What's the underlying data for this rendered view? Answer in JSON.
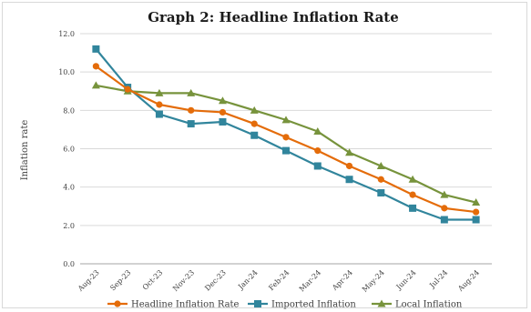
{
  "colors": {
    "headline": "#E46C0A",
    "imported": "#31859C",
    "local": "#77933C",
    "grid": "#d9d9d9",
    "axis": "#a6a6a6"
  },
  "chart_data": {
    "type": "line",
    "title": "Graph 2: Headline Inflation Rate",
    "xlabel": "",
    "ylabel": "Inflation rate",
    "ylim": [
      0,
      12
    ],
    "yticks": [
      "0.0",
      "2.0",
      "4.0",
      "6.0",
      "8.0",
      "10.0",
      "12.0"
    ],
    "grid": true,
    "legend_position": "bottom",
    "categories": [
      "Aug-23",
      "Sep-23",
      "Oct-23",
      "Nov-23",
      "Dec-23",
      "Jan-24",
      "Feb-24",
      "Mar-24",
      "Apr-24",
      "May-24",
      "Jun-24",
      "Jul-24",
      "Aug-24"
    ],
    "series": [
      {
        "name": "Headline Inflation Rate",
        "color": "#E46C0A",
        "marker": "circle",
        "values": [
          10.3,
          9.1,
          8.3,
          8.0,
          7.9,
          7.3,
          6.6,
          5.9,
          5.1,
          4.4,
          3.6,
          2.9,
          2.7
        ]
      },
      {
        "name": "Imported Inflation",
        "color": "#31859C",
        "marker": "square",
        "values": [
          11.2,
          9.2,
          7.8,
          7.3,
          7.4,
          6.7,
          5.9,
          5.1,
          4.4,
          3.7,
          2.9,
          2.3,
          2.3
        ]
      },
      {
        "name": "Local Inflation",
        "color": "#77933C",
        "marker": "triangle",
        "values": [
          9.3,
          9.0,
          8.9,
          8.9,
          8.5,
          8.0,
          7.5,
          6.9,
          5.8,
          5.1,
          4.4,
          3.6,
          3.2
        ]
      }
    ]
  }
}
